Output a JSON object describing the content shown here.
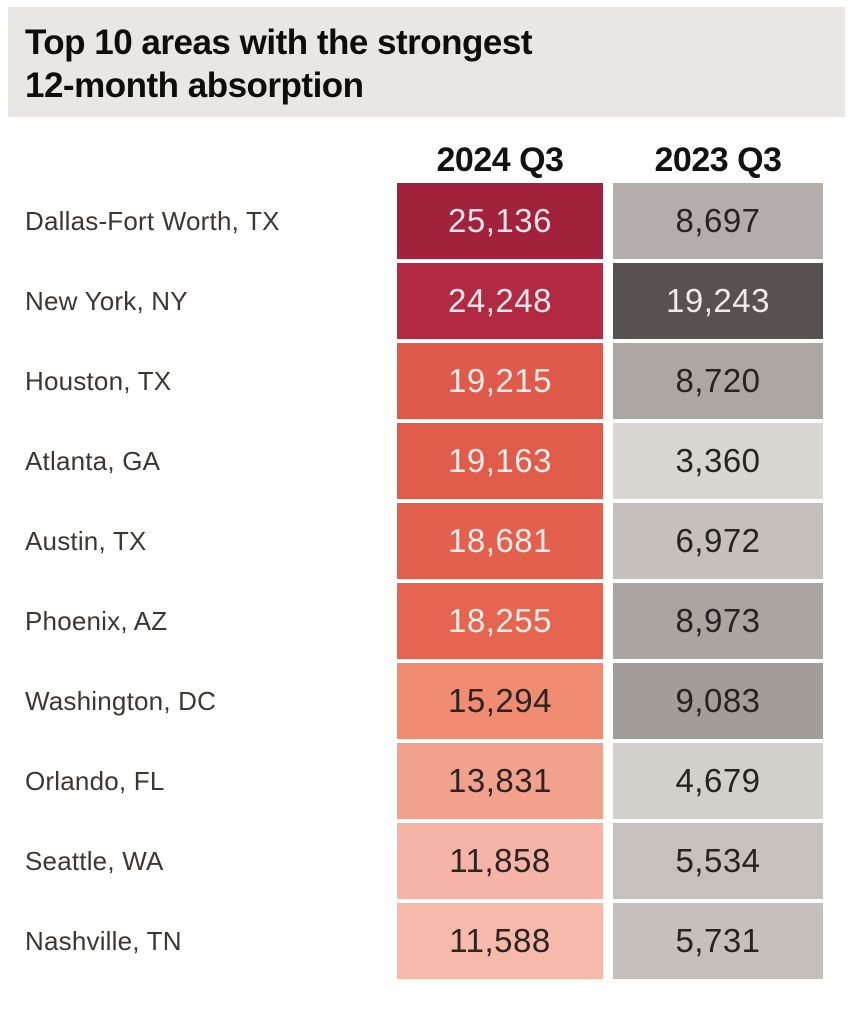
{
  "title": {
    "line1": "Top 10 areas with the strongest",
    "line2": "12-month absorption"
  },
  "columns": [
    "2024 Q3",
    "2023 Q3"
  ],
  "colors": {
    "page_bg": "#FFFFFF",
    "title_band_bg": "#E8E7E5",
    "title_text": "#0D0D0D",
    "header_text": "#121212",
    "label_text": "#3B3734"
  },
  "chart_data": {
    "type": "heatmap",
    "title": "Top 10 areas with the strongest 12-month absorption",
    "categories": [
      "Dallas-Fort Worth, TX",
      "New York, NY",
      "Houston, TX",
      "Atlanta, GA",
      "Austin, TX",
      "Phoenix, AZ",
      "Washington, DC",
      "Orlando, FL",
      "Seattle, WA",
      "Nashville, TN"
    ],
    "series": [
      {
        "name": "2024 Q3",
        "values": [
          25136,
          24248,
          19215,
          19163,
          18681,
          18255,
          15294,
          13831,
          11858,
          11588
        ]
      },
      {
        "name": "2023 Q3",
        "values": [
          8697,
          19243,
          8720,
          3360,
          6972,
          8973,
          9083,
          4679,
          5534,
          5731
        ]
      }
    ],
    "legend_position": "none",
    "grid": false
  },
  "rows": [
    {
      "label": "Dallas-Fort Worth, TX",
      "v2024": "25,136",
      "v2023": "8,697",
      "bg2024": "#A2213C",
      "fg2024": "#F3E4E7",
      "bg2023": "#B3AEAB",
      "fg2023": "#272320"
    },
    {
      "label": "New York, NY",
      "v2024": "24,248",
      "v2023": "19,243",
      "bg2024": "#B12A42",
      "fg2024": "#F5E7EA",
      "bg2023": "#575150",
      "fg2023": "#EFEBE8"
    },
    {
      "label": "Houston, TX",
      "v2024": "19,215",
      "v2023": "8,720",
      "bg2024": "#DF5A4A",
      "fg2024": "#FBEDEA",
      "bg2023": "#ACA7A3",
      "fg2023": "#272320"
    },
    {
      "label": "Atlanta, GA",
      "v2024": "19,163",
      "v2023": "3,360",
      "bg2024": "#E05B4A",
      "fg2024": "#FBEDEA",
      "bg2023": "#D9D6D1",
      "fg2023": "#272320"
    },
    {
      "label": "Austin, TX",
      "v2024": "18,681",
      "v2023": "6,972",
      "bg2024": "#E2604D",
      "fg2024": "#FBEDEA",
      "bg2023": "#C5C0BB",
      "fg2023": "#272320"
    },
    {
      "label": "Phoenix, AZ",
      "v2024": "18,255",
      "v2023": "8,973",
      "bg2024": "#E56550",
      "fg2024": "#FBEDEA",
      "bg2023": "#ABA5A1",
      "fg2023": "#272320"
    },
    {
      "label": "Washington, DC",
      "v2024": "15,294",
      "v2023": "9,083",
      "bg2024": "#EF8C71",
      "fg2024": "#2A2422",
      "bg2023": "#A39D99",
      "fg2023": "#272320"
    },
    {
      "label": "Orlando, FL",
      "v2024": "13,831",
      "v2023": "4,679",
      "bg2024": "#F2A28C",
      "fg2024": "#2A2422",
      "bg2023": "#D3CFCA",
      "fg2023": "#272320"
    },
    {
      "label": "Seattle, WA",
      "v2024": "11,858",
      "v2023": "5,534",
      "bg2024": "#F6B4A6",
      "fg2024": "#2A2422",
      "bg2023": "#C6C1BC",
      "fg2023": "#272320"
    },
    {
      "label": "Nashville, TN",
      "v2024": "11,588",
      "v2023": "5,731",
      "bg2024": "#F7B9AA",
      "fg2024": "#2A2422",
      "bg2023": "#C5C0BC",
      "fg2023": "#272320"
    }
  ]
}
